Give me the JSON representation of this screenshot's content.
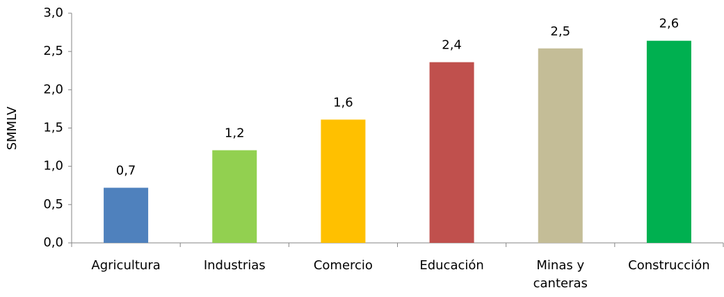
{
  "chart_data": {
    "type": "bar",
    "axis_label_y": "SMMLV",
    "categories": [
      "Agricultura",
      "Industrias",
      "Comercio",
      "Educación",
      "Minas y canteras",
      "Construcción"
    ],
    "values": [
      0.72,
      1.21,
      1.61,
      2.36,
      2.54,
      2.64
    ],
    "value_labels": [
      "0,7",
      "1,2",
      "1,6",
      "2,4",
      "2,5",
      "2,6"
    ],
    "colors": [
      "#4f81bd",
      "#92d050",
      "#ffc000",
      "#c0504d",
      "#c4bd97",
      "#00b050"
    ],
    "ylim": [
      0,
      3
    ],
    "yticks": [
      {
        "value": 0,
        "label": "0,0"
      },
      {
        "value": 0.5,
        "label": "0,5"
      },
      {
        "value": 1,
        "label": "1,0"
      },
      {
        "value": 1.5,
        "label": "1,5"
      },
      {
        "value": 2,
        "label": "2,0"
      },
      {
        "value": 2.5,
        "label": "2,5"
      },
      {
        "value": 3,
        "label": "3,0"
      }
    ],
    "grid": false
  }
}
